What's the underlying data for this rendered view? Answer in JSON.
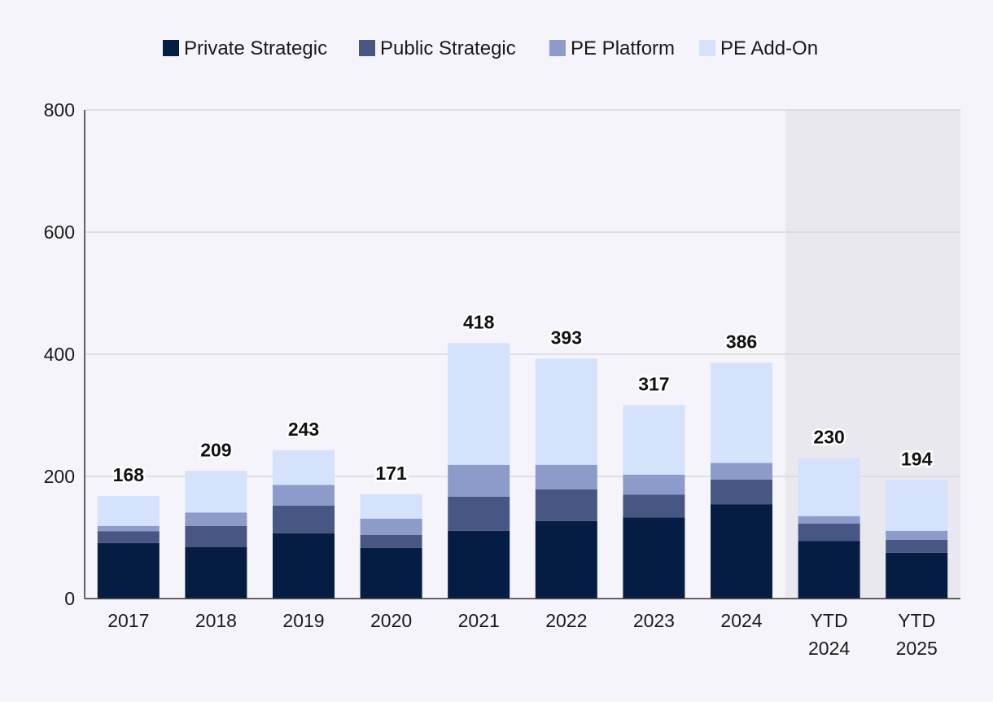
{
  "chart_data": {
    "type": "bar",
    "stacked": true,
    "title": "",
    "xlabel": "",
    "ylabel": "",
    "ylim": [
      0,
      800
    ],
    "yticks": [
      0,
      200,
      400,
      600,
      800
    ],
    "grid": true,
    "legend_position": "top-center",
    "categories": [
      [
        "2017"
      ],
      [
        "2018"
      ],
      [
        "2019"
      ],
      [
        "2020"
      ],
      [
        "2021"
      ],
      [
        "2022"
      ],
      [
        "2023"
      ],
      [
        "2024"
      ],
      [
        "YTD",
        "2024"
      ],
      [
        "YTD",
        "2025"
      ]
    ],
    "shaded_categories": [
      8,
      9
    ],
    "totals": [
      168,
      209,
      243,
      171,
      418,
      393,
      317,
      386,
      230,
      194
    ],
    "series": [
      {
        "name": "Private Strategic",
        "color": "#051d42",
        "values": [
          91,
          84,
          107,
          83,
          111,
          127,
          133,
          154,
          94,
          75
        ]
      },
      {
        "name": "Public Strategic",
        "color": "#475683",
        "values": [
          19,
          35,
          45,
          21,
          56,
          52,
          37,
          41,
          29,
          21
        ]
      },
      {
        "name": "PE Platform",
        "color": "#8d9bcb",
        "values": [
          9,
          22,
          34,
          27,
          52,
          40,
          33,
          27,
          12,
          15
        ]
      },
      {
        "name": "PE Add-On",
        "color": "#d4e2fc",
        "values": [
          49,
          68,
          57,
          40,
          199,
          174,
          114,
          164,
          95,
          83
        ]
      }
    ],
    "shade_color": "#e9e8ee",
    "grid_color": "#d7d6dd",
    "axis_color": "#333333"
  }
}
